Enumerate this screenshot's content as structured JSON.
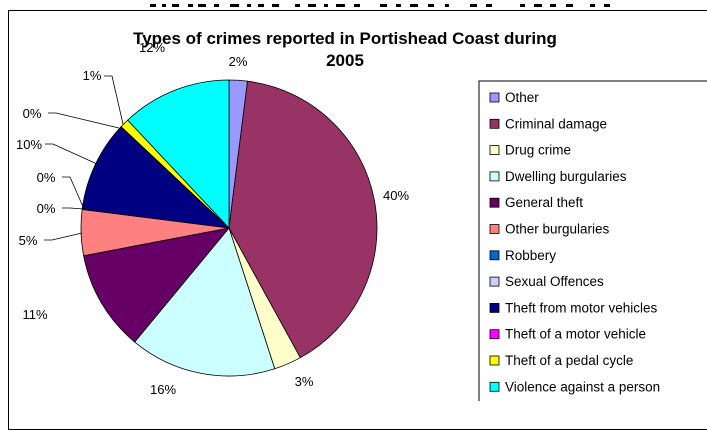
{
  "chart_data": {
    "type": "pie",
    "title": [
      "Types of crimes reported in Portishead Coast during",
      "2005"
    ],
    "slices": [
      {
        "name": "Other",
        "value": 2,
        "label": "2%",
        "color": "#9999FF"
      },
      {
        "name": "Criminal damage",
        "value": 40,
        "label": "40%",
        "color": "#993366"
      },
      {
        "name": "Drug crime",
        "value": 3,
        "label": "3%",
        "color": "#FFFFCC"
      },
      {
        "name": "Dwelling burgularies",
        "value": 16,
        "label": "16%",
        "color": "#CCFFFF"
      },
      {
        "name": "General theft",
        "value": 11,
        "label": "11%",
        "color": "#660066"
      },
      {
        "name": "Other burgularies",
        "value": 5,
        "label": "5%",
        "color": "#FF8080"
      },
      {
        "name": "Robbery",
        "value": 0,
        "label": "0%",
        "color": "#0066CC"
      },
      {
        "name": "Sexual Offences",
        "value": 0,
        "label": "0%",
        "color": "#CCCCFF"
      },
      {
        "name": "Theft from motor vehicles",
        "value": 10,
        "label": "10%",
        "color": "#000080"
      },
      {
        "name": "Theft of a motor vehicle",
        "value": 0,
        "label": "0%",
        "color": "#FF00FF"
      },
      {
        "name": "Theft of a pedal cycle",
        "value": 1,
        "label": "1%",
        "color": "#FFFF00"
      },
      {
        "name": "Violence against a person",
        "value": 12,
        "label": "12%",
        "color": "#00FFFF"
      }
    ],
    "legend_position": "right",
    "border_color": "#000000"
  }
}
